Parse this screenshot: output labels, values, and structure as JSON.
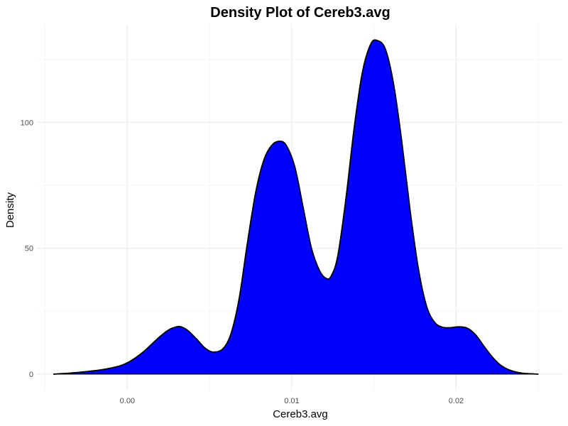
{
  "chart_data": {
    "type": "area",
    "title": "Density Plot of Cereb3.avg",
    "xlabel": "Cereb3.avg",
    "ylabel": "Density",
    "xlim": [
      -0.0055,
      0.0265
    ],
    "ylim": [
      -6.5,
      139
    ],
    "x_ticks": [
      {
        "value": 0.0,
        "label": "0.00"
      },
      {
        "value": 0.01,
        "label": "0.01"
      },
      {
        "value": 0.02,
        "label": "0.02"
      }
    ],
    "x_minor_gridlines": [
      -0.005,
      0.005,
      0.015,
      0.025
    ],
    "y_ticks": [
      {
        "value": 0,
        "label": "0"
      },
      {
        "value": 50,
        "label": "50"
      },
      {
        "value": 100,
        "label": "100"
      }
    ],
    "y_minor_gridlines": [
      25,
      75,
      125
    ],
    "grid": true,
    "colors": {
      "fill": "#0000FF",
      "outline": "#000000",
      "grid_major": "#EBEBEB",
      "grid_minor": "#F5F5F5"
    },
    "series": [
      {
        "x": [
          -0.0045,
          -0.0035,
          -0.0025,
          -0.0015,
          -0.0005,
          0.0,
          0.0005,
          0.001,
          0.0015,
          0.002,
          0.0025,
          0.003,
          0.0033,
          0.0037,
          0.0042,
          0.0047,
          0.0052,
          0.0058,
          0.0063,
          0.0068,
          0.0073,
          0.0078,
          0.0083,
          0.0088,
          0.0093,
          0.0097,
          0.0102,
          0.0107,
          0.0112,
          0.0117,
          0.0121,
          0.0124,
          0.0128,
          0.0133,
          0.0138,
          0.0143,
          0.0148,
          0.0152,
          0.0157,
          0.0162,
          0.0167,
          0.0172,
          0.0177,
          0.0182,
          0.0187,
          0.0192,
          0.0197,
          0.0202,
          0.0207,
          0.0212,
          0.0217,
          0.0222,
          0.0227,
          0.0233,
          0.024,
          0.025
        ],
        "y": [
          0.0,
          0.4,
          1.0,
          1.8,
          3.2,
          4.5,
          6.5,
          9.0,
          12.0,
          15.0,
          17.5,
          18.8,
          18.7,
          17.2,
          14.0,
          10.5,
          8.8,
          10.0,
          16.0,
          30.0,
          52.0,
          72.0,
          85.0,
          91.0,
          92.5,
          90.5,
          82.0,
          66.0,
          50.0,
          41.0,
          38.0,
          39.0,
          47.0,
          70.0,
          98.0,
          120.0,
          131.0,
          132.5,
          129.0,
          115.0,
          92.0,
          65.0,
          42.0,
          27.0,
          20.5,
          18.6,
          18.5,
          18.8,
          18.2,
          15.5,
          11.0,
          6.8,
          3.6,
          1.5,
          0.4,
          0.0
        ]
      }
    ]
  }
}
